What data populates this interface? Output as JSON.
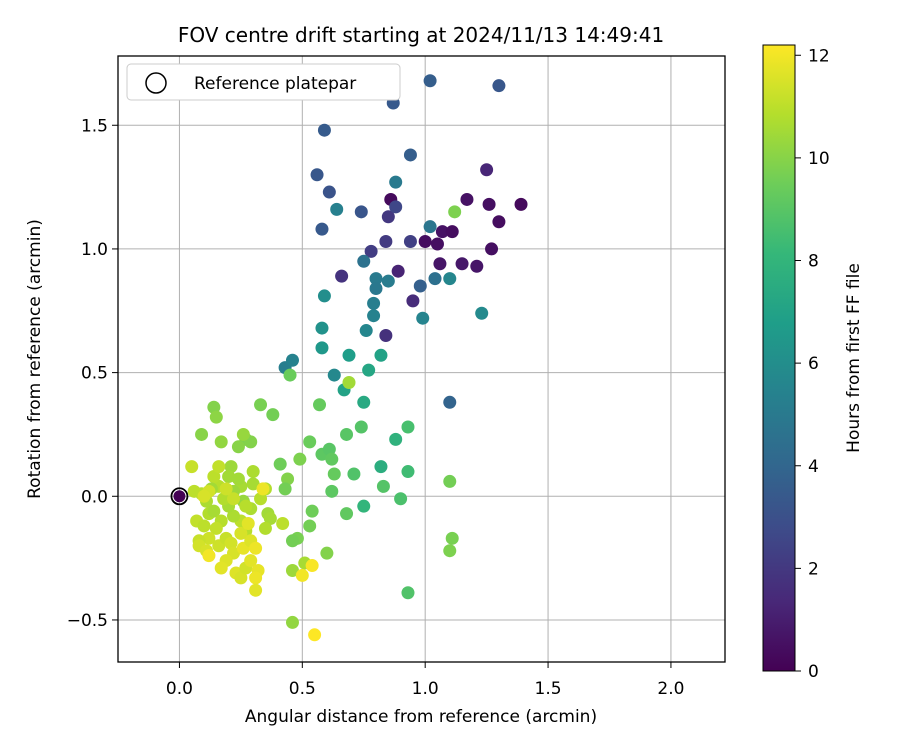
{
  "chart_data": {
    "type": "scatter",
    "title": "FOV centre drift starting at 2024/11/13 14:49:41",
    "xlabel": "Angular distance from reference (arcmin)",
    "ylabel": "Rotation from reference (arcmin)",
    "xlim": [
      -0.25,
      2.22
    ],
    "ylim": [
      -0.67,
      1.78
    ],
    "xticks": [
      0.0,
      0.5,
      1.0,
      1.5,
      2.0
    ],
    "xtick_labels": [
      "0.0",
      "0.5",
      "1.0",
      "1.5",
      "2.0"
    ],
    "yticks": [
      -0.5,
      0.0,
      0.5,
      1.0,
      1.5
    ],
    "ytick_labels": [
      "−0.5",
      "0.0",
      "0.5",
      "1.0",
      "1.5"
    ],
    "grid": true,
    "legend": {
      "placement": "top-left",
      "entries": [
        "Reference platepar"
      ]
    },
    "colorbar": {
      "label": "Hours from first FF file",
      "colormap": "viridis",
      "range": [
        0,
        12.2
      ],
      "ticks": [
        0,
        2,
        4,
        6,
        8,
        10,
        12
      ],
      "tick_labels": [
        "0",
        "2",
        "4",
        "6",
        "8",
        "10",
        "12"
      ]
    },
    "reference_point": {
      "x": 0.0,
      "y": 0.0
    },
    "points": [
      {
        "x": 0.86,
        "y": 1.2,
        "h": 0.3
      },
      {
        "x": 1.0,
        "y": 1.03,
        "h": 0.4
      },
      {
        "x": 1.05,
        "y": 1.02,
        "h": 0.5
      },
      {
        "x": 1.07,
        "y": 1.07,
        "h": 0.6
      },
      {
        "x": 1.11,
        "y": 1.07,
        "h": 0.4
      },
      {
        "x": 1.06,
        "y": 0.94,
        "h": 0.7
      },
      {
        "x": 1.15,
        "y": 0.94,
        "h": 0.8
      },
      {
        "x": 1.21,
        "y": 0.93,
        "h": 0.7
      },
      {
        "x": 1.17,
        "y": 1.2,
        "h": 0.6
      },
      {
        "x": 1.26,
        "y": 1.18,
        "h": 0.5
      },
      {
        "x": 1.3,
        "y": 1.11,
        "h": 0.4
      },
      {
        "x": 1.39,
        "y": 1.18,
        "h": 0.3
      },
      {
        "x": 1.27,
        "y": 1.0,
        "h": 0.5
      },
      {
        "x": 1.25,
        "y": 1.32,
        "h": 1.3
      },
      {
        "x": 0.89,
        "y": 0.91,
        "h": 1.2
      },
      {
        "x": 0.95,
        "y": 0.79,
        "h": 1.5
      },
      {
        "x": 0.84,
        "y": 0.65,
        "h": 1.7
      },
      {
        "x": 0.66,
        "y": 0.89,
        "h": 1.8
      },
      {
        "x": 0.78,
        "y": 0.99,
        "h": 2.2
      },
      {
        "x": 0.84,
        "y": 1.03,
        "h": 2.1
      },
      {
        "x": 0.85,
        "y": 1.13,
        "h": 2.0
      },
      {
        "x": 0.94,
        "y": 1.03,
        "h": 2.3
      },
      {
        "x": 0.88,
        "y": 1.17,
        "h": 2.6
      },
      {
        "x": 0.74,
        "y": 1.15,
        "h": 3.2
      },
      {
        "x": 0.56,
        "y": 1.3,
        "h": 3.3
      },
      {
        "x": 0.61,
        "y": 1.23,
        "h": 3.1
      },
      {
        "x": 0.58,
        "y": 1.08,
        "h": 3.4
      },
      {
        "x": 0.59,
        "y": 1.48,
        "h": 3.5
      },
      {
        "x": 0.87,
        "y": 1.59,
        "h": 3.4
      },
      {
        "x": 1.02,
        "y": 1.68,
        "h": 3.6
      },
      {
        "x": 1.3,
        "y": 1.66,
        "h": 3.3
      },
      {
        "x": 0.94,
        "y": 1.38,
        "h": 3.6
      },
      {
        "x": 0.98,
        "y": 0.85,
        "h": 3.7
      },
      {
        "x": 1.04,
        "y": 0.88,
        "h": 4.5
      },
      {
        "x": 1.1,
        "y": 0.38,
        "h": 3.9
      },
      {
        "x": 1.02,
        "y": 1.09,
        "h": 4.8
      },
      {
        "x": 0.88,
        "y": 1.27,
        "h": 5.0
      },
      {
        "x": 0.64,
        "y": 1.16,
        "h": 5.3
      },
      {
        "x": 0.75,
        "y": 0.95,
        "h": 4.6
      },
      {
        "x": 0.8,
        "y": 0.88,
        "h": 5.0
      },
      {
        "x": 0.8,
        "y": 0.84,
        "h": 4.9
      },
      {
        "x": 0.85,
        "y": 0.87,
        "h": 5.1
      },
      {
        "x": 0.79,
        "y": 0.78,
        "h": 5.2
      },
      {
        "x": 0.79,
        "y": 0.73,
        "h": 5.4
      },
      {
        "x": 0.76,
        "y": 0.67,
        "h": 5.6
      },
      {
        "x": 0.99,
        "y": 0.72,
        "h": 5.5
      },
      {
        "x": 1.1,
        "y": 0.88,
        "h": 5.6
      },
      {
        "x": 1.23,
        "y": 0.74,
        "h": 5.8
      },
      {
        "x": 0.43,
        "y": 0.52,
        "h": 5.2
      },
      {
        "x": 0.46,
        "y": 0.55,
        "h": 5.4
      },
      {
        "x": 0.63,
        "y": 0.49,
        "h": 5.7
      },
      {
        "x": 0.59,
        "y": 0.81,
        "h": 6.0
      },
      {
        "x": 0.58,
        "y": 0.68,
        "h": 6.2
      },
      {
        "x": 0.58,
        "y": 0.6,
        "h": 6.5
      },
      {
        "x": 0.69,
        "y": 0.57,
        "h": 6.8
      },
      {
        "x": 0.82,
        "y": 0.57,
        "h": 7.0
      },
      {
        "x": 0.67,
        "y": 0.43,
        "h": 7.0
      },
      {
        "x": 0.75,
        "y": 0.38,
        "h": 7.4
      },
      {
        "x": 0.77,
        "y": 0.51,
        "h": 7.2
      },
      {
        "x": 0.82,
        "y": 0.12,
        "h": 7.6
      },
      {
        "x": 0.88,
        "y": 0.23,
        "h": 7.8
      },
      {
        "x": 0.75,
        "y": -0.04,
        "h": 8.0
      },
      {
        "x": 0.93,
        "y": 0.1,
        "h": 8.4
      },
      {
        "x": 0.93,
        "y": 0.28,
        "h": 8.6
      },
      {
        "x": 0.93,
        "y": -0.39,
        "h": 8.8
      },
      {
        "x": 0.9,
        "y": -0.01,
        "h": 8.7
      },
      {
        "x": 0.83,
        "y": 0.04,
        "h": 8.9
      },
      {
        "x": 0.71,
        "y": 0.09,
        "h": 8.8
      },
      {
        "x": 0.74,
        "y": 0.28,
        "h": 8.9
      },
      {
        "x": 0.68,
        "y": 0.25,
        "h": 9.0
      },
      {
        "x": 0.58,
        "y": 0.17,
        "h": 9.1
      },
      {
        "x": 0.61,
        "y": 0.19,
        "h": 9.0
      },
      {
        "x": 0.62,
        "y": 0.15,
        "h": 9.2
      },
      {
        "x": 0.63,
        "y": 0.09,
        "h": 9.3
      },
      {
        "x": 0.62,
        "y": 0.02,
        "h": 9.1
      },
      {
        "x": 0.53,
        "y": 0.22,
        "h": 9.4
      },
      {
        "x": 0.68,
        "y": -0.07,
        "h": 9.2
      },
      {
        "x": 0.54,
        "y": -0.06,
        "h": 9.5
      },
      {
        "x": 0.53,
        "y": -0.12,
        "h": 9.6
      },
      {
        "x": 0.48,
        "y": -0.17,
        "h": 9.7
      },
      {
        "x": 0.46,
        "y": -0.18,
        "h": 9.6
      },
      {
        "x": 0.49,
        "y": 0.15,
        "h": 9.8
      },
      {
        "x": 0.44,
        "y": 0.07,
        "h": 9.9
      },
      {
        "x": 0.43,
        "y": 0.03,
        "h": 9.6
      },
      {
        "x": 0.41,
        "y": 0.13,
        "h": 9.5
      },
      {
        "x": 0.45,
        "y": 0.49,
        "h": 9.4
      },
      {
        "x": 0.57,
        "y": 0.37,
        "h": 9.3
      },
      {
        "x": 0.38,
        "y": 0.33,
        "h": 9.6
      },
      {
        "x": 0.33,
        "y": 0.37,
        "h": 9.7
      },
      {
        "x": 0.27,
        "y": 0.23,
        "h": 9.8
      },
      {
        "x": 0.29,
        "y": 0.22,
        "h": 9.9
      },
      {
        "x": 0.24,
        "y": 0.2,
        "h": 10.0
      },
      {
        "x": 0.14,
        "y": 0.36,
        "h": 9.9
      },
      {
        "x": 0.15,
        "y": 0.32,
        "h": 10.1
      },
      {
        "x": 0.09,
        "y": 0.25,
        "h": 10.0
      },
      {
        "x": 0.17,
        "y": 0.22,
        "h": 10.2
      },
      {
        "x": 1.12,
        "y": 1.15,
        "h": 9.8
      },
      {
        "x": 1.1,
        "y": 0.06,
        "h": 9.6
      },
      {
        "x": 1.11,
        "y": -0.17,
        "h": 9.7
      },
      {
        "x": 1.1,
        "y": -0.22,
        "h": 9.8
      },
      {
        "x": 0.6,
        "y": -0.23,
        "h": 9.9
      },
      {
        "x": 0.46,
        "y": -0.51,
        "h": 10.2
      },
      {
        "x": 0.46,
        "y": -0.3,
        "h": 10.4
      },
      {
        "x": 0.51,
        "y": -0.27,
        "h": 10.6
      },
      {
        "x": 0.69,
        "y": 0.46,
        "h": 10.5
      },
      {
        "x": 0.26,
        "y": 0.25,
        "h": 10.3
      },
      {
        "x": 0.21,
        "y": 0.12,
        "h": 10.4
      },
      {
        "x": 0.2,
        "y": 0.08,
        "h": 10.5
      },
      {
        "x": 0.25,
        "y": 0.04,
        "h": 10.6
      },
      {
        "x": 0.3,
        "y": 0.1,
        "h": 10.7
      },
      {
        "x": 0.24,
        "y": 0.07,
        "h": 10.5
      },
      {
        "x": 0.22,
        "y": 0.02,
        "h": 10.4
      },
      {
        "x": 0.26,
        "y": -0.02,
        "h": 10.3
      },
      {
        "x": 0.3,
        "y": 0.05,
        "h": 10.6
      },
      {
        "x": 0.35,
        "y": 0.03,
        "h": 10.8
      },
      {
        "x": 0.33,
        "y": -0.01,
        "h": 10.9
      },
      {
        "x": 0.29,
        "y": -0.05,
        "h": 10.7
      },
      {
        "x": 0.36,
        "y": -0.07,
        "h": 10.5
      },
      {
        "x": 0.37,
        "y": -0.09,
        "h": 10.6
      },
      {
        "x": 0.35,
        "y": -0.13,
        "h": 10.8
      },
      {
        "x": 0.27,
        "y": -0.14,
        "h": 10.9
      },
      {
        "x": 0.25,
        "y": -0.1,
        "h": 11.0
      },
      {
        "x": 0.22,
        "y": -0.08,
        "h": 10.7
      },
      {
        "x": 0.2,
        "y": -0.04,
        "h": 10.6
      },
      {
        "x": 0.18,
        "y": -0.01,
        "h": 10.8
      },
      {
        "x": 0.16,
        "y": 0.04,
        "h": 10.9
      },
      {
        "x": 0.14,
        "y": 0.08,
        "h": 11.0
      },
      {
        "x": 0.16,
        "y": 0.12,
        "h": 11.1
      },
      {
        "x": 0.13,
        "y": 0.03,
        "h": 10.5
      },
      {
        "x": 0.11,
        "y": -0.02,
        "h": 10.7
      },
      {
        "x": 0.09,
        "y": 0.01,
        "h": 10.9
      },
      {
        "x": 0.06,
        "y": 0.02,
        "h": 11.0
      },
      {
        "x": 0.05,
        "y": 0.12,
        "h": 11.2
      },
      {
        "x": 0.07,
        "y": -0.1,
        "h": 11.1
      },
      {
        "x": 0.1,
        "y": -0.12,
        "h": 11.0
      },
      {
        "x": 0.12,
        "y": -0.07,
        "h": 10.8
      },
      {
        "x": 0.14,
        "y": -0.06,
        "h": 10.6
      },
      {
        "x": 0.17,
        "y": -0.1,
        "h": 10.9
      },
      {
        "x": 0.15,
        "y": -0.13,
        "h": 11.1
      },
      {
        "x": 0.12,
        "y": -0.17,
        "h": 11.3
      },
      {
        "x": 0.08,
        "y": -0.18,
        "h": 11.2
      },
      {
        "x": 0.08,
        "y": -0.2,
        "h": 11.4
      },
      {
        "x": 0.11,
        "y": -0.22,
        "h": 11.5
      },
      {
        "x": 0.16,
        "y": -0.2,
        "h": 11.3
      },
      {
        "x": 0.19,
        "y": -0.17,
        "h": 11.2
      },
      {
        "x": 0.21,
        "y": -0.19,
        "h": 11.4
      },
      {
        "x": 0.22,
        "y": -0.23,
        "h": 11.5
      },
      {
        "x": 0.19,
        "y": -0.26,
        "h": 11.6
      },
      {
        "x": 0.17,
        "y": -0.29,
        "h": 11.7
      },
      {
        "x": 0.23,
        "y": -0.31,
        "h": 11.6
      },
      {
        "x": 0.25,
        "y": -0.33,
        "h": 11.5
      },
      {
        "x": 0.27,
        "y": -0.29,
        "h": 11.4
      },
      {
        "x": 0.29,
        "y": -0.26,
        "h": 11.7
      },
      {
        "x": 0.26,
        "y": -0.21,
        "h": 11.8
      },
      {
        "x": 0.29,
        "y": -0.18,
        "h": 11.6
      },
      {
        "x": 0.25,
        "y": -0.15,
        "h": 11.5
      },
      {
        "x": 0.28,
        "y": -0.11,
        "h": 11.7
      },
      {
        "x": 0.31,
        "y": -0.21,
        "h": 11.9
      },
      {
        "x": 0.32,
        "y": -0.3,
        "h": 11.8
      },
      {
        "x": 0.31,
        "y": -0.33,
        "h": 11.9
      },
      {
        "x": 0.31,
        "y": -0.38,
        "h": 11.7
      },
      {
        "x": 0.34,
        "y": 0.03,
        "h": 11.9
      },
      {
        "x": 0.12,
        "y": -0.24,
        "h": 12.0
      },
      {
        "x": 0.5,
        "y": -0.32,
        "h": 12.0
      },
      {
        "x": 0.54,
        "y": -0.28,
        "h": 12.1
      },
      {
        "x": 0.55,
        "y": -0.56,
        "h": 12.2
      },
      {
        "x": 0.42,
        "y": -0.11,
        "h": 11.0
      },
      {
        "x": 0.27,
        "y": -0.04,
        "h": 10.9
      },
      {
        "x": 0.22,
        "y": -0.01,
        "h": 11.2
      },
      {
        "x": 0.19,
        "y": 0.03,
        "h": 11.3
      },
      {
        "x": 0.12,
        "y": 0.02,
        "h": 11.4
      },
      {
        "x": 0.1,
        "y": 0.0,
        "h": 11.5
      }
    ]
  }
}
